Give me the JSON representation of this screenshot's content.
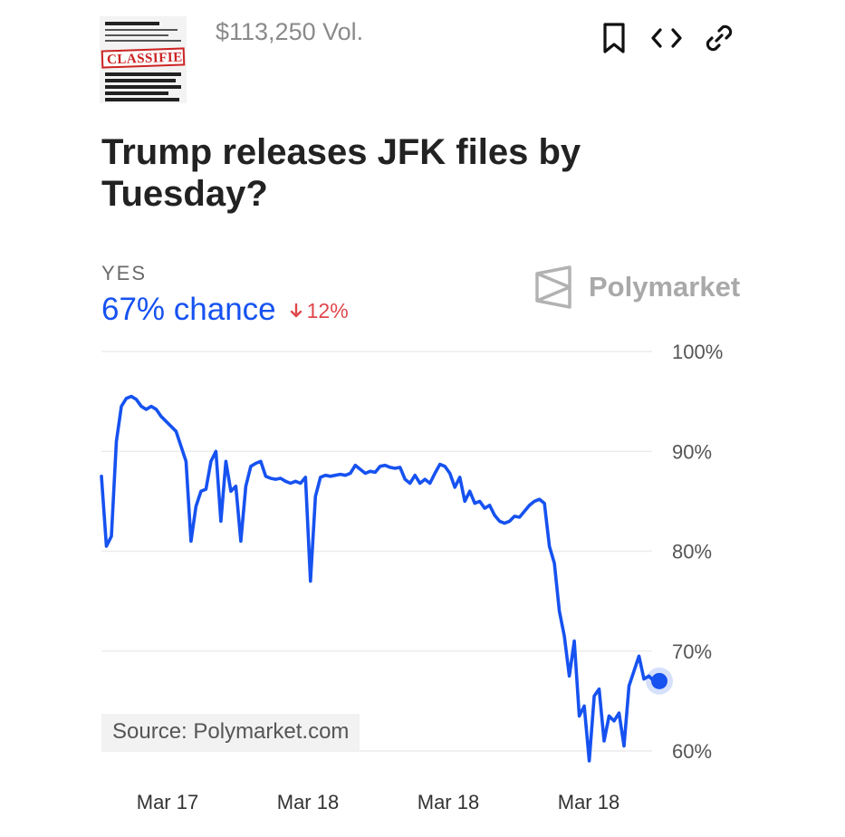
{
  "market": {
    "image_label": "CLASSIFIED",
    "volume": "$113,250 Vol.",
    "title": "Trump releases JFK files by Tuesday?",
    "outcome": "YES",
    "chance": "67% chance",
    "change": "12%",
    "brand": "Polymarket",
    "source": "Source: Polymarket.com"
  },
  "icons": {
    "bookmark": "bookmark-icon",
    "embed": "code-icon",
    "link": "link-icon",
    "change": "arrow-down-icon",
    "brand": "polymarket-logo-icon"
  },
  "colors": {
    "line": "#1652f0",
    "change": "#e0474c"
  },
  "chart_data": {
    "type": "line",
    "title": "",
    "xlabel": "",
    "ylabel": "",
    "ylim": [
      60,
      100
    ],
    "grid": true,
    "yaxis_position": "right",
    "yticks": [
      "100%",
      "90%",
      "80%",
      "70%",
      "60%"
    ],
    "xticks": [
      "Mar 17",
      "Mar 18",
      "Mar 18",
      "Mar 18"
    ],
    "series": [
      {
        "values": [
          87.5,
          80.5,
          81.5,
          91.0,
          94.5,
          95.3,
          95.5,
          95.2,
          94.5,
          94.2,
          94.5,
          94.2,
          93.5,
          93.0,
          92.5,
          92.0,
          90.5,
          89.0,
          81.0,
          84.5,
          86.0,
          86.2,
          89.0,
          90.0,
          83.0,
          89.0,
          86.0,
          86.5,
          81.0,
          86.5,
          88.5,
          88.8,
          89.0,
          87.5,
          87.3,
          87.2,
          87.3,
          87.0,
          86.8,
          87.0,
          86.8,
          87.4,
          77.0,
          85.5,
          87.4,
          87.6,
          87.5,
          87.6,
          87.7,
          87.6,
          87.8,
          88.6,
          88.2,
          87.8,
          88.0,
          87.9,
          88.5,
          88.6,
          88.4,
          88.3,
          88.4,
          87.2,
          86.8,
          87.6,
          86.8,
          87.2,
          86.8,
          87.8,
          88.7,
          88.5,
          87.8,
          86.4,
          87.4,
          85.0,
          86.0,
          84.8,
          85.0,
          84.3,
          84.6,
          83.6,
          83.0,
          82.8,
          83.0,
          83.5,
          83.4,
          84.0,
          84.6,
          85.0,
          85.2,
          84.8,
          80.5,
          78.8,
          74.0,
          71.5,
          67.5,
          71.0,
          63.5,
          64.5,
          59.0,
          65.5,
          66.2,
          61.0,
          63.5,
          63.0,
          63.8,
          60.5,
          66.5,
          68.0,
          69.5,
          67.2,
          67.5,
          67.0
        ]
      }
    ]
  }
}
